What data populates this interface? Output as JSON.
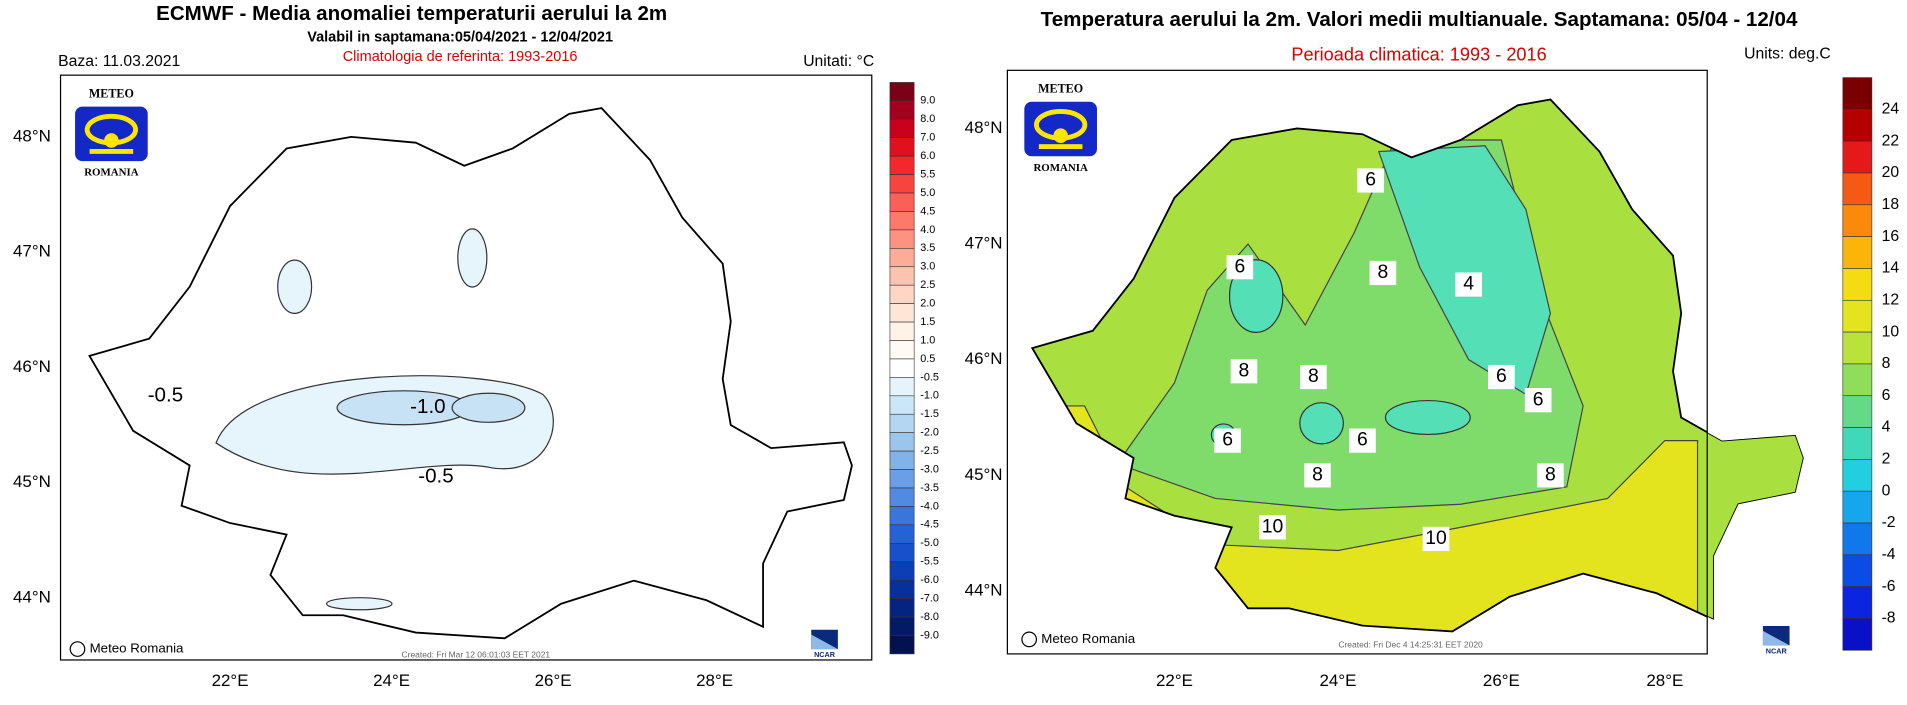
{
  "left_map": {
    "title": "ECMWF  - Media anomaliei temperaturii aerului la 2m",
    "subtitle": "Valabil in saptamana:05/04/2021 - 12/04/2021",
    "reference": "Climatologia de referinta: 1993-2016",
    "base_date": "Baza: 11.03.2021",
    "units": "Unitati: °C",
    "logo": {
      "top": "METEO",
      "bottom": "ROMANIA"
    },
    "lat_labels": [
      "48°N",
      "47°N",
      "46°N",
      "45°N",
      "44°N"
    ],
    "lon_labels": [
      "22°E",
      "24°E",
      "26°E",
      "28°E"
    ],
    "colorbar_labels": [
      "9.0",
      "8.0",
      "7.0",
      "6.0",
      "5.5",
      "5.0",
      "4.5",
      "4.0",
      "3.5",
      "3.0",
      "2.5",
      "2.0",
      "1.5",
      "1.0",
      "0.5",
      "-0.5",
      "-1.0",
      "-1.5",
      "-2.0",
      "-2.5",
      "-3.0",
      "-3.5",
      "-4.0",
      "-4.5",
      "-5.0",
      "-5.5",
      "-6.0",
      "-7.0",
      "-8.0",
      "-9.0"
    ],
    "contour_labels": [
      "-0.5",
      "-1.0",
      "-0.5"
    ],
    "credit": "Meteo Romania",
    "created": "Created: Fri Mar 12 06:01:03 EET 2021",
    "ncar": "NCAR"
  },
  "right_map": {
    "title": "Temperatura aerului la 2m. Valori medii multianuale. Saptamana: 05/04 - 12/04",
    "subtitle": "Perioada climatica: 1993 - 2016",
    "units": "Units: deg.C",
    "logo": {
      "top": "METEO",
      "bottom": "ROMANIA"
    },
    "lat_labels": [
      "48°N",
      "47°N",
      "46°N",
      "45°N",
      "44°N"
    ],
    "lon_labels": [
      "22°E",
      "24°E",
      "26°E",
      "28°E"
    ],
    "colorbar_labels": [
      "24",
      "22",
      "20",
      "18",
      "16",
      "14",
      "12",
      "10",
      "8",
      "6",
      "4",
      "2",
      "0",
      "-2",
      "-4",
      "-6",
      "-8"
    ],
    "contour_labels": [
      "6",
      "6",
      "8",
      "4",
      "8",
      "8",
      "6",
      "6",
      "6",
      "6",
      "8",
      "8",
      "10",
      "10"
    ],
    "credit": "Meteo Romania",
    "created": "Created: Fri Dec  4 14:25:31 EET 2020",
    "ncar": "NCAR"
  }
}
